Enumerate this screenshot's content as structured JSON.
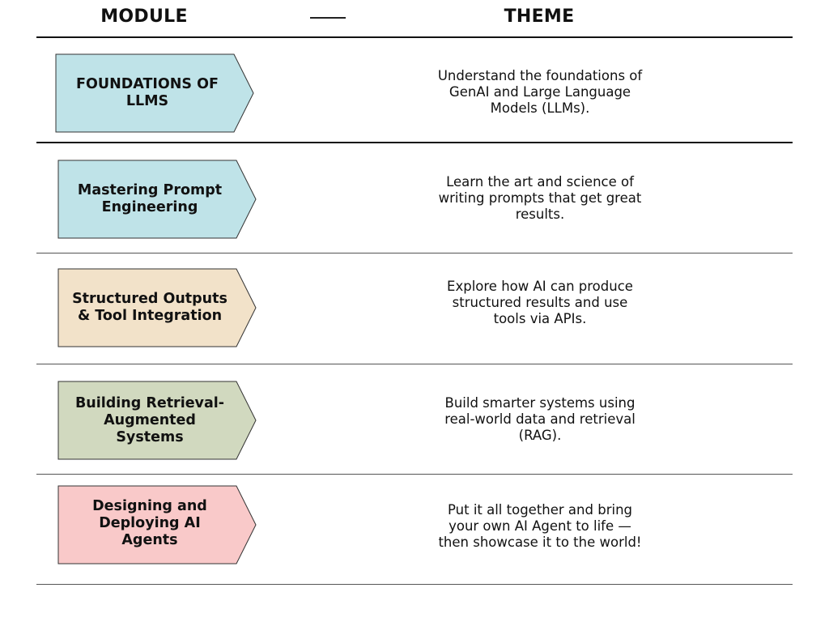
{
  "header": {
    "module_label": "MODULE",
    "theme_label": "THEME"
  },
  "modules": [
    {
      "module": "FOUNDATIONS OF\nLLMS",
      "theme": "Understand the foundations of\nGenAI and Large Language\nModels (LLMs).",
      "color": "#bfe3e8"
    },
    {
      "module": "Mastering Prompt\nEngineering",
      "theme": "Learn the art and science of\nwriting prompts that get great\nresults.",
      "color": "#bfe3e8"
    },
    {
      "module": "Structured Outputs\n& Tool Integration",
      "theme": "Explore how AI can produce\nstructured results and use\ntools via APIs.",
      "color": "#f2e2c9"
    },
    {
      "module": "Building Retrieval-\nAugmented\nSystems",
      "theme": "Build smarter systems using\nreal-world data and retrieval\n(RAG).",
      "color": "#d1d9bf"
    },
    {
      "module": "Designing and\nDeploying AI\nAgents",
      "theme": "Put it all together and bring\nyour own AI Agent to life —\nthen showcase it to the world!",
      "color": "#f9c9c9"
    }
  ]
}
